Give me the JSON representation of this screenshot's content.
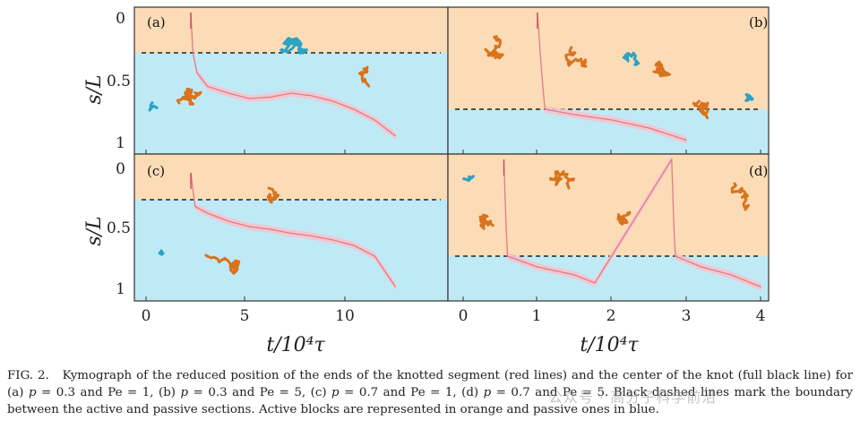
{
  "figure": {
    "ylabel": "s/L",
    "xlabel": "t/10⁴τ",
    "y_ticks": [
      "0",
      "0.5",
      "1"
    ],
    "x_ticks_left": [
      "0",
      "5",
      "10"
    ],
    "x_ticks_right": [
      "0",
      "1",
      "2",
      "3",
      "4"
    ],
    "colors": {
      "active": "#fbdcb6",
      "passive": "#bfeaf5",
      "trace": "#e07a88",
      "band": "#f5c4cc",
      "dashed": "#222222",
      "polymer_active": "#d9731c",
      "polymer_passive": "#2aa3c4"
    },
    "panels": [
      {
        "label": "(a)",
        "p": 0.3,
        "Pe": 1,
        "boundary": 0.3,
        "trace": [
          [
            2.2,
            0.0
          ],
          [
            2.3,
            0.3
          ],
          [
            2.5,
            0.45
          ],
          [
            3,
            0.55
          ],
          [
            4,
            0.6
          ],
          [
            5,
            0.64
          ],
          [
            6,
            0.63
          ],
          [
            7,
            0.6
          ],
          [
            8,
            0.62
          ],
          [
            9,
            0.66
          ],
          [
            10,
            0.72
          ],
          [
            11,
            0.8
          ],
          [
            12,
            0.92
          ]
        ]
      },
      {
        "label": "(b)",
        "p": 0.3,
        "Pe": 5,
        "boundary": 0.72,
        "trace": [
          [
            1.0,
            0.0
          ],
          [
            1.05,
            0.4
          ],
          [
            1.1,
            0.72
          ],
          [
            1.5,
            0.76
          ],
          [
            2,
            0.8
          ],
          [
            2.5,
            0.86
          ],
          [
            3,
            0.95
          ]
        ]
      },
      {
        "label": "(c)",
        "p": 0.7,
        "Pe": 1,
        "boundary": 0.3,
        "trace": [
          [
            2.2,
            0.1
          ],
          [
            2.4,
            0.35
          ],
          [
            3,
            0.4
          ],
          [
            4,
            0.46
          ],
          [
            5,
            0.5
          ],
          [
            6,
            0.52
          ],
          [
            7,
            0.55
          ],
          [
            8,
            0.57
          ],
          [
            9,
            0.6
          ],
          [
            10,
            0.64
          ],
          [
            11,
            0.72
          ],
          [
            12,
            0.95
          ]
        ]
      },
      {
        "label": "(d)",
        "p": 0.7,
        "Pe": 5,
        "boundary": 0.72,
        "trace": [
          [
            0.55,
            0.0
          ],
          [
            0.58,
            0.5
          ],
          [
            0.6,
            0.72
          ],
          [
            1.0,
            0.8
          ],
          [
            1.5,
            0.86
          ],
          [
            1.77,
            0.92
          ],
          [
            2.8,
            0.0
          ],
          [
            2.83,
            0.5
          ],
          [
            2.85,
            0.72
          ],
          [
            3.2,
            0.8
          ],
          [
            3.6,
            0.86
          ],
          [
            4.0,
            0.95
          ]
        ]
      }
    ]
  },
  "caption": {
    "lead": "FIG. 2.",
    "text1": "Kymograph of the reduced position of the ends of the knotted segment (red lines) and the center of the knot (full black line) for (a)",
    "a_p": "p",
    "a_eq": " = 0.3 and Pe = 1, (b) ",
    "b_p": "p",
    "b_eq": " = 0.3 and Pe = 5, (c) ",
    "c_p": "p",
    "c_eq": " = 0.7 and Pe = 1, (d) ",
    "d_p": "p",
    "d_eq": " = 0.7 and Pe = 5. Black dashed lines mark the boundary between the active and passive sections. Active blocks are represented in orange and passive ones in blue."
  },
  "watermark": "公众号 · 高分子科学前沿"
}
